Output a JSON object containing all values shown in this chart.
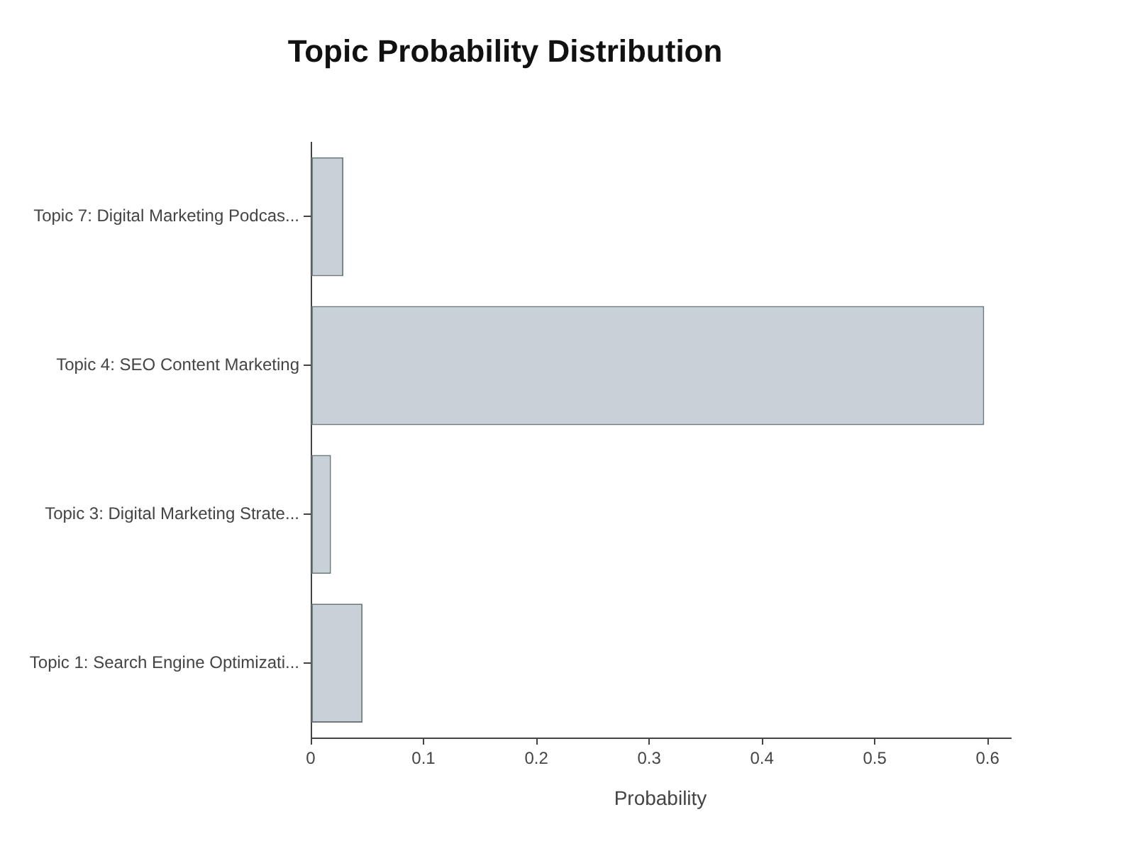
{
  "chart_data": {
    "type": "bar",
    "orientation": "horizontal",
    "title": "Topic Probability Distribution",
    "xlabel": "Probability",
    "categories": [
      "Topic 7: Digital Marketing Podcas...",
      "Topic 4: SEO Content Marketing",
      "Topic 3: Digital Marketing Strate...",
      "Topic 1: Search Engine Optimizati..."
    ],
    "values": [
      0.029,
      0.597,
      0.018,
      0.046
    ],
    "color": "#c8d1d8",
    "xlim": [
      0,
      0.62
    ],
    "xticks": [
      0,
      0.1,
      0.2,
      0.3,
      0.4,
      0.5,
      0.6
    ]
  }
}
